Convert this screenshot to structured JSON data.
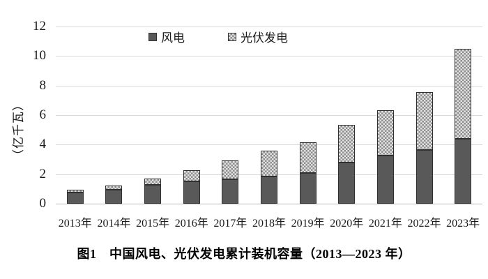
{
  "figure": {
    "caption": "图1　中国风电、光伏发电累计装机容量（2013—2023 年）"
  },
  "chart_data": {
    "type": "bar",
    "stacked": true,
    "title": "图1　中国风电、光伏发电累计装机容量（2013—2023 年）",
    "ylabel": "（亿千瓦）",
    "xlabel": "",
    "ylim": [
      0,
      12
    ],
    "yticks": [
      0,
      2,
      4,
      6,
      8,
      10,
      12
    ],
    "grid": true,
    "legend_position": "top-center",
    "categories": [
      "2013年",
      "2014年",
      "2015年",
      "2016年",
      "2017年",
      "2018年",
      "2019年",
      "2020年",
      "2021年",
      "2022年",
      "2023年"
    ],
    "series": [
      {
        "name": "风电",
        "style": "solid",
        "color": "#595959",
        "values": [
          0.77,
          0.96,
          1.29,
          1.49,
          1.64,
          1.84,
          2.1,
          2.81,
          3.28,
          3.65,
          4.41
        ]
      },
      {
        "name": "光伏发电",
        "style": "checker-dots",
        "color": "#e2e2e2",
        "dot_color": "#8f8f8f",
        "values": [
          0.19,
          0.28,
          0.43,
          0.77,
          1.3,
          1.74,
          2.04,
          2.53,
          3.06,
          3.93,
          6.09
        ]
      }
    ],
    "totals": [
      0.96,
      1.24,
      1.72,
      2.26,
      2.94,
      3.58,
      4.14,
      5.34,
      6.34,
      7.58,
      10.5
    ]
  },
  "colors": {
    "background": "#ffffff",
    "gridline": "#dadada",
    "axis_line": "#b9b9b9",
    "bar_border": "#303030",
    "text": "#1a1a1a"
  }
}
